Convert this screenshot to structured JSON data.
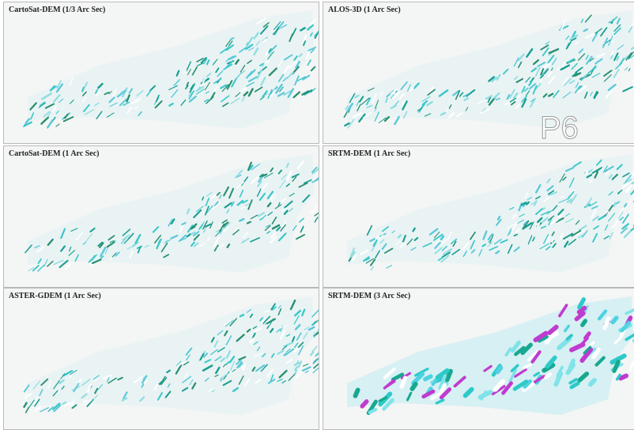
{
  "panels": [
    {
      "title": "CartoSat-DEM (1/3 Arc Sec)"
    },
    {
      "title": "ALOS-3D (1 Arc Sec)"
    },
    {
      "title": "CartoSat-DEM (1 Arc Sec)"
    },
    {
      "title": "SRTM-DEM (1 Arc Sec)"
    },
    {
      "title": "ASTER-GDEM (1 Arc Sec)"
    },
    {
      "title": "SRTM-DEM (3 Arc Sec)"
    }
  ],
  "watermark": "P6"
}
